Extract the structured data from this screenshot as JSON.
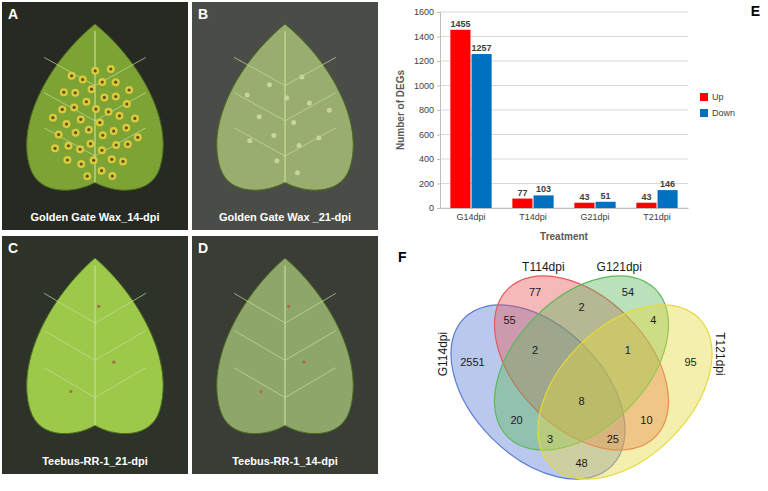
{
  "photos": [
    {
      "letter": "A",
      "caption": "Golden Gate Wax_14-dpi"
    },
    {
      "letter": "B",
      "caption": "Golden Gate Wax _21-dpi"
    },
    {
      "letter": "C",
      "caption": "Teebus-RR-1_21-dpi"
    },
    {
      "letter": "D",
      "caption": "Teebus-RR-1_14-dpi"
    }
  ],
  "chart_data": [
    {
      "panel": "E",
      "type": "bar",
      "categories": [
        "G14dpi",
        "T14dpi",
        "G21dpi",
        "T21dpi"
      ],
      "x_label": "Treatment",
      "y_label": "Number of DEGs",
      "series": [
        {
          "name": "Up",
          "color": "#ff0000",
          "values": [
            1455,
            77,
            43,
            43
          ]
        },
        {
          "name": "Down",
          "color": "#0070c0",
          "values": [
            1257,
            103,
            51,
            146
          ]
        }
      ],
      "ylim": [
        0,
        1600
      ],
      "yticks": [
        0,
        200,
        400,
        600,
        800,
        1000,
        1200,
        1400,
        1600
      ],
      "grid": true,
      "legend": "right",
      "data_labels": true
    },
    {
      "panel": "F",
      "type": "venn",
      "sets": [
        {
          "name": "G114dpi",
          "color": "#5b7bd5"
        },
        {
          "name": "T114dpi",
          "color": "#e8585a"
        },
        {
          "name": "G121dpi",
          "color": "#5cb85c"
        },
        {
          "name": "T121dpi",
          "color": "#e6d93c"
        }
      ],
      "regions": [
        {
          "sets": [
            "G114dpi"
          ],
          "value": 2551
        },
        {
          "sets": [
            "T114dpi"
          ],
          "value": 77
        },
        {
          "sets": [
            "G121dpi"
          ],
          "value": 54
        },
        {
          "sets": [
            "T121dpi"
          ],
          "value": 95
        },
        {
          "sets": [
            "G114dpi",
            "T114dpi"
          ],
          "value": 55
        },
        {
          "sets": [
            "T114dpi",
            "G121dpi"
          ],
          "value": 2
        },
        {
          "sets": [
            "G121dpi",
            "T121dpi"
          ],
          "value": 4
        },
        {
          "sets": [
            "G114dpi",
            "T121dpi"
          ],
          "value": 48
        },
        {
          "sets": [
            "G114dpi",
            "G121dpi"
          ],
          "value": 20
        },
        {
          "sets": [
            "T114dpi",
            "T121dpi"
          ],
          "value": 10
        },
        {
          "sets": [
            "G114dpi",
            "T114dpi",
            "G121dpi"
          ],
          "value": 2
        },
        {
          "sets": [
            "T114dpi",
            "G121dpi",
            "T121dpi"
          ],
          "value": 1
        },
        {
          "sets": [
            "G114dpi",
            "T114dpi",
            "T121dpi"
          ],
          "value": 25
        },
        {
          "sets": [
            "G114dpi",
            "G121dpi",
            "T121dpi"
          ],
          "value": 3
        },
        {
          "sets": [
            "G114dpi",
            "T114dpi",
            "G121dpi",
            "T121dpi"
          ],
          "value": 8
        }
      ]
    }
  ]
}
